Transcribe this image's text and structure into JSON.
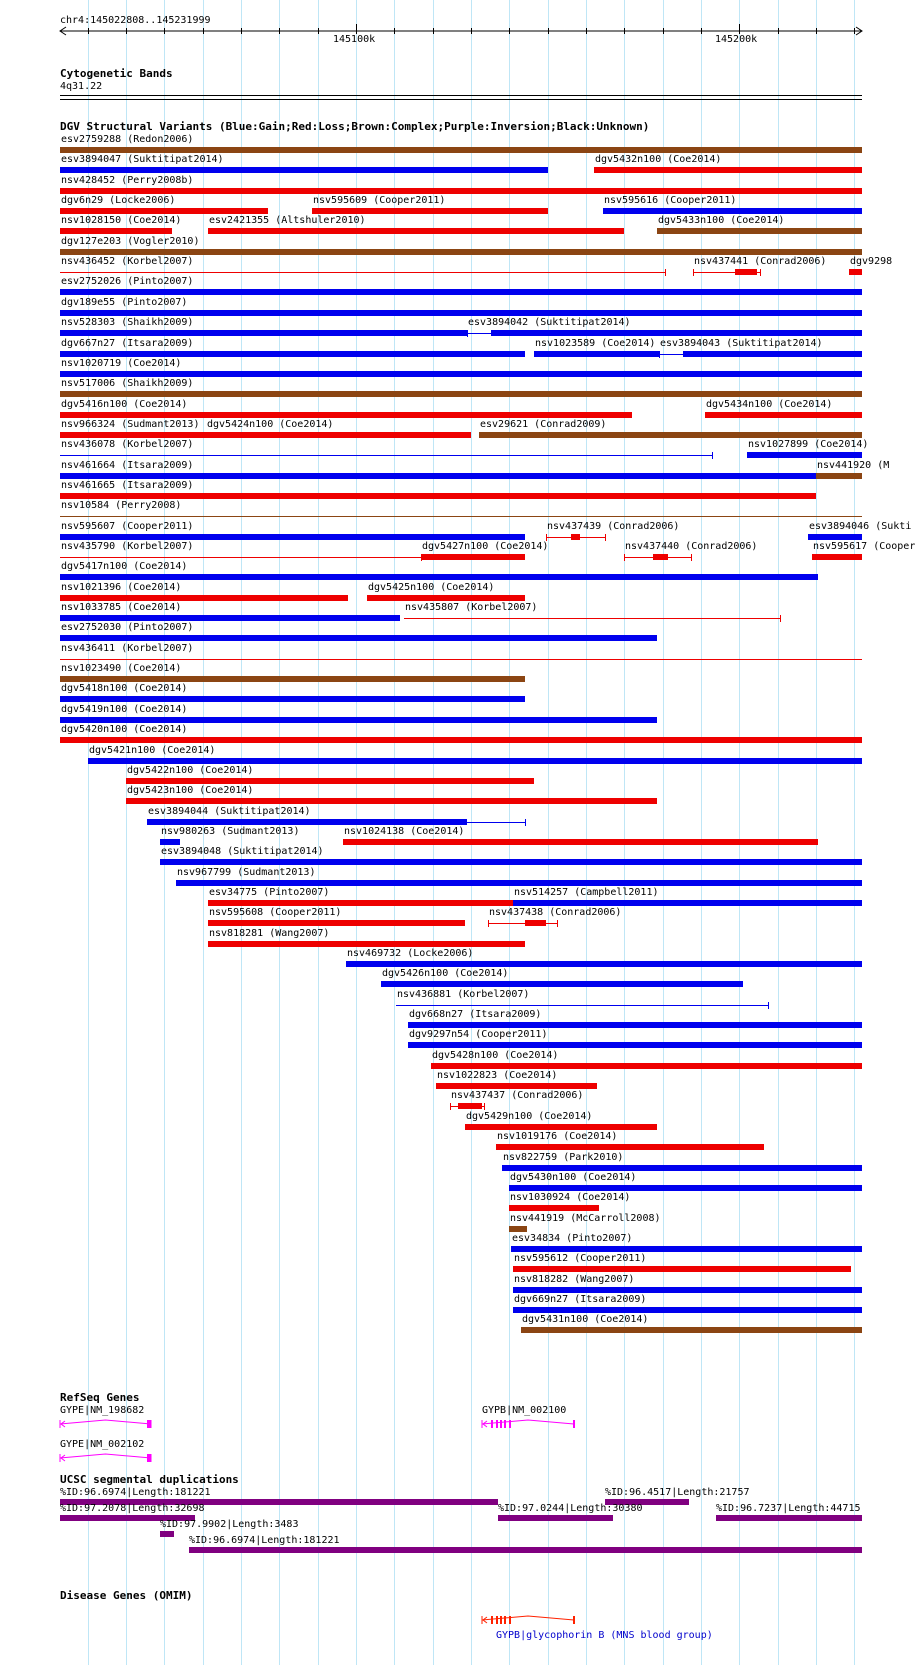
{
  "colors": {
    "gain": "#0000ee",
    "loss": "#ee0000",
    "complex": "#8b4513",
    "inversion": "#800080",
    "unknown": "#000000",
    "refseq": "#ff00ff",
    "omim_gene": "#ff2200",
    "omim_label": "#0000cc",
    "grid": "#bfe6f6"
  },
  "ruler": {
    "location": "chr4:145022808..145231999",
    "start": 145022808,
    "end": 145231999,
    "major_ticks": [
      {
        "pos": 145100000,
        "label": "145100k"
      },
      {
        "pos": 145200000,
        "label": "145200k"
      }
    ],
    "grid_step": 10000
  },
  "cytoband": {
    "title": "Cytogenetic Bands",
    "band": "4q31.22"
  },
  "dgv": {
    "title": "DGV Structural Variants (Blue:Gain;Red:Loss;Brown:Complex;Purple:Inversion;Black:Unknown)",
    "variants": [
      {
        "label": "esv2759288 (Redon2006)",
        "start": 145022808,
        "end": 145231999,
        "type": "complex",
        "style": "bar",
        "row": 0
      },
      {
        "label": "esv3894047 (Suktitipat2014)",
        "start": 145022808,
        "end": 145150000,
        "type": "gain",
        "style": "bar",
        "row": 1
      },
      {
        "label": "dgv5432n100 (Coe2014)",
        "start": 145162000,
        "end": 145231999,
        "type": "loss",
        "style": "bar",
        "row": 1
      },
      {
        "label": "nsv428452 (Perry2008b)",
        "start": 145022808,
        "end": 145231999,
        "type": "loss",
        "style": "bar",
        "row": 2
      },
      {
        "label": "dgv6n29 (Locke2006)",
        "start": 145022808,
        "end": 145077000,
        "type": "loss",
        "style": "bar",
        "row": 3
      },
      {
        "label": "nsv595609 (Cooper2011)",
        "start": 145088500,
        "end": 145150000,
        "type": "loss",
        "style": "bar",
        "row": 3
      },
      {
        "label": "nsv595616 (Cooper2011)",
        "start": 145164500,
        "end": 145231999,
        "type": "gain",
        "style": "bar",
        "row": 3
      },
      {
        "label": "nsv1028150 (Coe2014)",
        "start": 145022808,
        "end": 145052000,
        "type": "loss",
        "style": "bar",
        "row": 4
      },
      {
        "label": "esv2421355 (Altshuler2010)",
        "start": 145061500,
        "end": 145170000,
        "type": "loss",
        "style": "bar",
        "row": 4
      },
      {
        "label": "dgv5433n100 (Coe2014)",
        "start": 145178500,
        "end": 145231999,
        "type": "complex",
        "style": "bar",
        "row": 4
      },
      {
        "label": "dgv127e203 (Vogler2010)",
        "start": 145022808,
        "end": 145231999,
        "type": "complex",
        "style": "bar",
        "row": 5
      },
      {
        "label": "nsv436452 (Korbel2007)",
        "start": 145022808,
        "end": 145180500,
        "type": "loss",
        "style": "thin",
        "row": 6
      },
      {
        "label": "nsv437441 (Conrad2006)",
        "start": 145188000,
        "end": 145205500,
        "type": "loss",
        "style": "ci",
        "cstart": 145199000,
        "cend": 145204500,
        "row": 6
      },
      {
        "label": "dgv9298",
        "start": 145228500,
        "end": 145231999,
        "type": "loss",
        "style": "bar",
        "row": 6
      },
      {
        "label": "esv2752026 (Pinto2007)",
        "start": 145022808,
        "end": 145231999,
        "type": "gain",
        "style": "bar",
        "row": 7
      },
      {
        "label": "dgv189e55 (Pinto2007)",
        "start": 145022808,
        "end": 145231999,
        "type": "gain",
        "style": "bar",
        "row": 8
      },
      {
        "label": "nsv528303 (Shaikh2009)",
        "start": 145022808,
        "end": 145129000,
        "type": "gain",
        "style": "bar",
        "row": 9
      },
      {
        "label": "esv3894042 (Suktitipat2014)",
        "start": 145129000,
        "end": 145231999,
        "type": "gain",
        "style": "split",
        "row": 9
      },
      {
        "label": "dgv667n27 (Itsara2009)",
        "start": 145022808,
        "end": 145144000,
        "type": "gain",
        "style": "bar",
        "row": 10
      },
      {
        "label": "nsv1023589 (Coe2014)",
        "start": 145146500,
        "end": 145179000,
        "type": "gain",
        "style": "bar",
        "row": 10
      },
      {
        "label": "esv3894043 (Suktitipat2014)",
        "start": 145179000,
        "end": 145231999,
        "type": "gain",
        "style": "split",
        "row": 10
      },
      {
        "label": "nsv1020719 (Coe2014)",
        "start": 145022808,
        "end": 145231999,
        "type": "gain",
        "style": "bar",
        "row": 11
      },
      {
        "label": "nsv517006 (Shaikh2009)",
        "start": 145022808,
        "end": 145231999,
        "type": "complex",
        "style": "bar",
        "row": 12
      },
      {
        "label": "dgv5416n100 (Coe2014)",
        "start": 145022808,
        "end": 145172000,
        "type": "loss",
        "style": "bar",
        "row": 13
      },
      {
        "label": "dgv5434n100 (Coe2014)",
        "start": 145191000,
        "end": 145231999,
        "type": "loss",
        "style": "bar",
        "row": 13
      },
      {
        "label": "nsv966324 (Sudmant2013)",
        "start": 145022808,
        "end": 145061000,
        "type": "loss",
        "style": "bar",
        "row": 14
      },
      {
        "label": "dgv5424n100 (Coe2014)",
        "start": 145061000,
        "end": 145130000,
        "type": "loss",
        "style": "bar",
        "row": 14
      },
      {
        "label": "esv29621 (Conrad2009)",
        "start": 145132000,
        "end": 145231999,
        "type": "complex",
        "style": "bar",
        "row": 14
      },
      {
        "label": "nsv436078 (Korbel2007)",
        "start": 145022808,
        "end": 145193000,
        "type": "gain",
        "style": "thin",
        "row": 15
      },
      {
        "label": "nsv1027899 (Coe2014)",
        "start": 145202000,
        "end": 145231999,
        "type": "gain",
        "style": "bar",
        "row": 15
      },
      {
        "label": "nsv461664 (Itsara2009)",
        "start": 145022808,
        "end": 145220000,
        "type": "gain",
        "style": "bar",
        "row": 16
      },
      {
        "label": "nsv441920 (M",
        "start": 145220000,
        "end": 145231999,
        "type": "complex",
        "style": "bar",
        "row": 16
      },
      {
        "label": "nsv461665 (Itsara2009)",
        "start": 145022808,
        "end": 145220000,
        "type": "loss",
        "style": "bar",
        "row": 17
      },
      {
        "label": "nsv10584 (Perry2008)",
        "start": 145022808,
        "end": 145231999,
        "type": "complex",
        "style": "thin",
        "row": 18
      },
      {
        "label": "nsv595607 (Cooper2011)",
        "start": 145022808,
        "end": 145144000,
        "type": "gain",
        "style": "bar",
        "row": 19
      },
      {
        "label": "nsv437439 (Conrad2006)",
        "start": 145149500,
        "end": 145165000,
        "type": "loss",
        "style": "ci",
        "cstart": 145156000,
        "cend": 145158500,
        "row": 19
      },
      {
        "label": "esv3894046 (Sukti",
        "start": 145218000,
        "end": 145231999,
        "type": "gain",
        "style": "bar",
        "row": 19
      },
      {
        "label": "nsv435790 (Korbel2007)",
        "start": 145022808,
        "end": 145117000,
        "type": "loss",
        "style": "thin",
        "row": 20
      },
      {
        "label": "dgv5427n100 (Coe2014)",
        "start": 145117000,
        "end": 145144000,
        "type": "loss",
        "style": "bar",
        "row": 20
      },
      {
        "label": "nsv437440 (Conrad2006)",
        "start": 145170000,
        "end": 145187500,
        "type": "loss",
        "style": "ci",
        "cstart": 145177500,
        "cend": 145181500,
        "row": 20
      },
      {
        "label": "nsv595617 (Cooper",
        "start": 145219000,
        "end": 145231999,
        "type": "loss",
        "style": "bar",
        "row": 20
      },
      {
        "label": "dgv5417n100 (Coe2014)",
        "start": 145022808,
        "end": 145220500,
        "type": "gain",
        "style": "bar",
        "row": 21
      },
      {
        "label": "nsv1021396 (Coe2014)",
        "start": 145022808,
        "end": 145098000,
        "type": "loss",
        "style": "bar",
        "row": 22
      },
      {
        "label": "dgv5425n100 (Coe2014)",
        "start": 145103000,
        "end": 145144000,
        "type": "loss",
        "style": "bar",
        "row": 22
      },
      {
        "label": "nsv1033785 (Coe2014)",
        "start": 145022808,
        "end": 145111500,
        "type": "gain",
        "style": "bar",
        "row": 23
      },
      {
        "label": "nsv435807 (Korbel2007)",
        "start": 145112500,
        "end": 145210500,
        "type": "loss",
        "style": "thin",
        "row": 23
      },
      {
        "label": "esv2752030 (Pinto2007)",
        "start": 145022808,
        "end": 145178500,
        "type": "gain",
        "style": "bar",
        "row": 24
      },
      {
        "label": "nsv436411 (Korbel2007)",
        "start": 145022808,
        "end": 145231999,
        "type": "loss",
        "style": "thin",
        "row": 25
      },
      {
        "label": "nsv1023490 (Coe2014)",
        "start": 145022808,
        "end": 145144000,
        "type": "complex",
        "style": "bar",
        "row": 26
      },
      {
        "label": "dgv5418n100 (Coe2014)",
        "start": 145022808,
        "end": 145144000,
        "type": "gain",
        "style": "bar",
        "row": 27
      },
      {
        "label": "dgv5419n100 (Coe2014)",
        "start": 145022808,
        "end": 145178500,
        "type": "gain",
        "style": "bar",
        "row": 28
      },
      {
        "label": "dgv5420n100 (Coe2014)",
        "start": 145022808,
        "end": 145231999,
        "type": "loss",
        "style": "bar",
        "row": 29
      },
      {
        "label": "dgv5421n100 (Coe2014)",
        "start": 145030000,
        "end": 145231999,
        "type": "gain",
        "style": "bar",
        "row": 30
      },
      {
        "label": "dgv5422n100 (Coe2014)",
        "start": 145040000,
        "end": 145146500,
        "type": "loss",
        "style": "bar",
        "row": 31
      },
      {
        "label": "dgv5423n100 (Coe2014)",
        "start": 145040000,
        "end": 145178500,
        "type": "loss",
        "style": "bar",
        "row": 32
      },
      {
        "label": "esv3894044 (Suktitipat2014)",
        "start": 145045500,
        "end": 145144000,
        "type": "gain",
        "style": "split",
        "row": 33
      },
      {
        "label": "nsv980263 (Sudmant2013)",
        "start": 145049000,
        "end": 145054000,
        "type": "gain",
        "style": "bar",
        "row": 34
      },
      {
        "label": "nsv1024138 (Coe2014)",
        "start": 145096500,
        "end": 145220500,
        "type": "loss",
        "style": "bar",
        "row": 34
      },
      {
        "label": "esv3894048 (Suktitipat2014)",
        "start": 145049000,
        "end": 145231999,
        "type": "gain",
        "style": "bar",
        "row": 35
      },
      {
        "label": "nsv967799 (Sudmant2013)",
        "start": 145053000,
        "end": 145231999,
        "type": "gain",
        "style": "bar",
        "row": 36
      },
      {
        "label": "esv34775 (Pinto2007)",
        "start": 145061500,
        "end": 145141000,
        "type": "loss",
        "style": "bar",
        "row": 37
      },
      {
        "label": "nsv514257 (Campbell2011)",
        "start": 145141000,
        "end": 145231999,
        "type": "gain",
        "style": "bar",
        "row": 37
      },
      {
        "label": "nsv595608 (Cooper2011)",
        "start": 145061500,
        "end": 145128500,
        "type": "loss",
        "style": "bar",
        "row": 38
      },
      {
        "label": "nsv437438 (Conrad2006)",
        "start": 145134500,
        "end": 145152500,
        "type": "loss",
        "style": "ci",
        "cstart": 145144000,
        "cend": 145149500,
        "row": 38
      },
      {
        "label": "nsv818281 (Wang2007)",
        "start": 145061500,
        "end": 145144000,
        "type": "loss",
        "style": "bar",
        "row": 39
      },
      {
        "label": "nsv469732 (Locke2006)",
        "start": 145097500,
        "end": 145231999,
        "type": "gain",
        "style": "bar",
        "row": 40
      },
      {
        "label": "dgv5426n100 (Coe2014)",
        "start": 145106500,
        "end": 145201000,
        "type": "gain",
        "style": "bar",
        "row": 41
      },
      {
        "label": "nsv436881 (Korbel2007)",
        "start": 145110500,
        "end": 145207500,
        "type": "gain",
        "style": "thin",
        "row": 42
      },
      {
        "label": "dgv668n27 (Itsara2009)",
        "start": 145113500,
        "end": 145231999,
        "type": "gain",
        "style": "bar",
        "row": 43
      },
      {
        "label": "dgv9297n54 (Cooper2011)",
        "start": 145113500,
        "end": 145231999,
        "type": "gain",
        "style": "bar",
        "row": 44
      },
      {
        "label": "dgv5428n100 (Coe2014)",
        "start": 145119500,
        "end": 145231999,
        "type": "loss",
        "style": "bar",
        "row": 45
      },
      {
        "label": "nsv1022823 (Coe2014)",
        "start": 145121000,
        "end": 145163000,
        "type": "loss",
        "style": "bar",
        "row": 46
      },
      {
        "label": "nsv437437 (Conrad2006)",
        "start": 145124500,
        "end": 145133500,
        "type": "loss",
        "style": "ci",
        "cstart": 145126500,
        "cend": 145133000,
        "row": 47
      },
      {
        "label": "dgv5429n100 (Coe2014)",
        "start": 145128500,
        "end": 145178500,
        "type": "loss",
        "style": "bar",
        "row": 48
      },
      {
        "label": "nsv1019176 (Coe2014)",
        "start": 145136500,
        "end": 145206500,
        "type": "loss",
        "style": "bar",
        "row": 49
      },
      {
        "label": "nsv822759 (Park2010)",
        "start": 145138000,
        "end": 145231999,
        "type": "gain",
        "style": "bar",
        "row": 50
      },
      {
        "label": "dgv5430n100 (Coe2014)",
        "start": 145140000,
        "end": 145231999,
        "type": "gain",
        "style": "bar",
        "row": 51
      },
      {
        "label": "nsv1030924 (Coe2014)",
        "start": 145140000,
        "end": 145163500,
        "type": "loss",
        "style": "bar",
        "row": 52
      },
      {
        "label": "nsv441919 (McCarroll2008)",
        "start": 145140000,
        "end": 145144500,
        "type": "complex",
        "style": "bar",
        "row": 53
      },
      {
        "label": "esv34834 (Pinto2007)",
        "start": 145140500,
        "end": 145231999,
        "type": "gain",
        "style": "bar",
        "row": 54
      },
      {
        "label": "nsv595612 (Cooper2011)",
        "start": 145141000,
        "end": 145229000,
        "type": "loss",
        "style": "bar",
        "row": 55
      },
      {
        "label": "nsv818282 (Wang2007)",
        "start": 145141000,
        "end": 145231999,
        "type": "gain",
        "style": "bar",
        "row": 56
      },
      {
        "label": "dgv669n27 (Itsara2009)",
        "start": 145141000,
        "end": 145231999,
        "type": "gain",
        "style": "bar",
        "row": 57
      },
      {
        "label": "dgv5431n100 (Coe2014)",
        "start": 145143000,
        "end": 145231999,
        "type": "complex",
        "style": "bar",
        "row": 58
      }
    ]
  },
  "refseq": {
    "title": "RefSeq Genes",
    "genes": [
      {
        "label": "GYPE|NM_198682",
        "start": 145022808,
        "end": 145046500,
        "row": 0,
        "exons": [
          145045800,
          145046300
        ]
      },
      {
        "label": "GYPE|NM_002102",
        "start": 145022808,
        "end": 145046500,
        "row": 1,
        "exons": [
          145045800,
          145046300
        ]
      },
      {
        "label": "GYPB|NM_002100",
        "start": 145133000,
        "end": 145157000,
        "row": 0,
        "exons": [
          145135500,
          145136800,
          145137900,
          145139000,
          145140200,
          145156800
        ]
      }
    ]
  },
  "segdups": {
    "title": "UCSC segmental duplications",
    "items": [
      {
        "label": "%ID:96.6974|Length:181221",
        "start": 145022808,
        "end": 145137000,
        "row": 0
      },
      {
        "label": "%ID:96.4517|Length:21757",
        "start": 145165000,
        "end": 145187000,
        "row": 0
      },
      {
        "label": "%ID:97.2078|Length:32698",
        "start": 145022808,
        "end": 145058000,
        "row": 1
      },
      {
        "label": "%ID:97.0244|Length:30380",
        "start": 145137000,
        "end": 145167000,
        "row": 1
      },
      {
        "label": "%ID:96.7237|Length:44715",
        "start": 145194000,
        "end": 145231999,
        "row": 1
      },
      {
        "label": "%ID:97.9902|Length:3483",
        "start": 145049000,
        "end": 145052500,
        "row": 2
      },
      {
        "label": "%ID:96.6974|Length:181221",
        "start": 145056500,
        "end": 145231999,
        "row": 3
      }
    ]
  },
  "omim": {
    "title": "Disease Genes (OMIM)",
    "gene": {
      "label": "GYPB|glycophorin B (MNS blood group)",
      "start": 145133000,
      "end": 145157000,
      "exons": [
        145135500,
        145136800,
        145137900,
        145139000,
        145140200,
        145156800
      ]
    }
  }
}
